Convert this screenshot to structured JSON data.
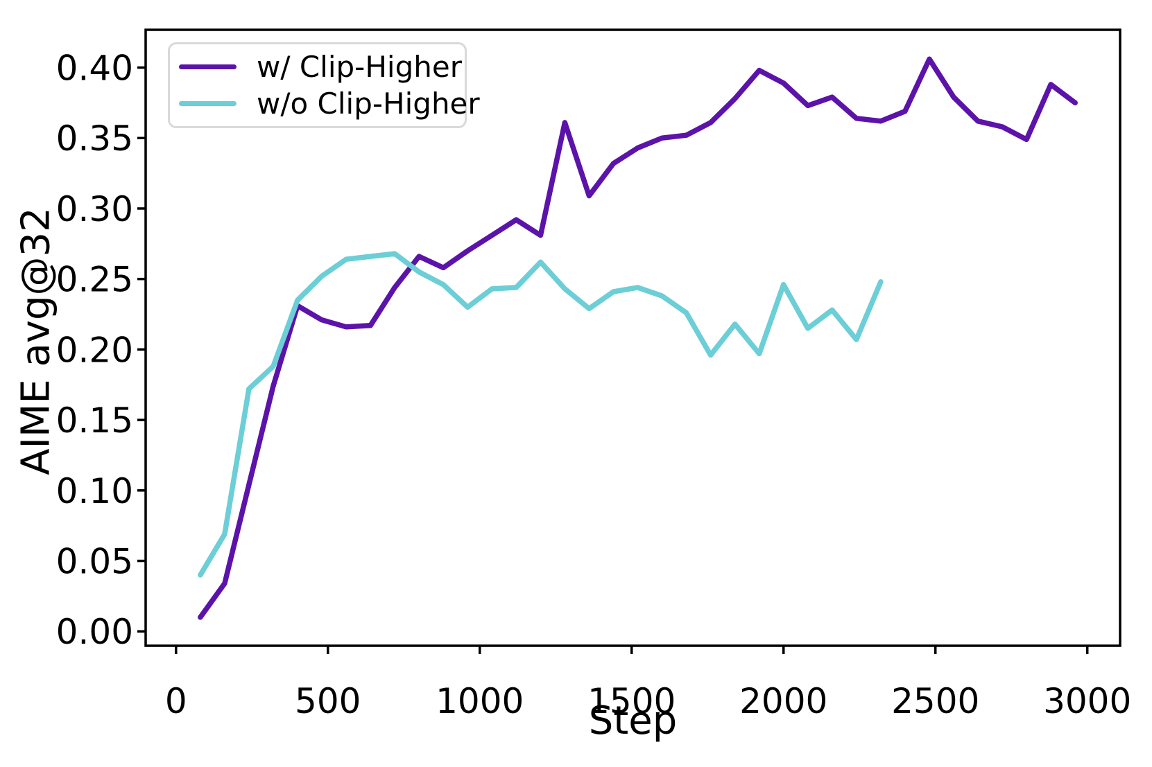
{
  "figure": {
    "background_color": "#ffffff",
    "axes_color": "#000000"
  },
  "chart_data": {
    "type": "line",
    "title": "",
    "xlabel": "Step",
    "ylabel": "AIME avg@32",
    "xlim": [
      -100,
      3108
    ],
    "ylim": [
      -0.0102,
      0.4268
    ],
    "grid": false,
    "legend_position": "upper-left",
    "x_ticks": [
      0,
      500,
      1000,
      1500,
      2000,
      2500,
      3000
    ],
    "x_tick_labels": [
      "0",
      "500",
      "1000",
      "1500",
      "2000",
      "2500",
      "3000"
    ],
    "y_ticks": [
      0.0,
      0.05,
      0.1,
      0.15,
      0.2,
      0.25,
      0.3,
      0.35,
      0.4
    ],
    "y_tick_labels": [
      "0.00",
      "0.05",
      "0.10",
      "0.15",
      "0.20",
      "0.25",
      "0.30",
      "0.35",
      "0.40"
    ],
    "series": [
      {
        "name": "w/ Clip-Higher",
        "color": "#5C13A9",
        "line_width": 7.5,
        "x": [
          80,
          160,
          240,
          320,
          400,
          480,
          560,
          640,
          720,
          800,
          880,
          960,
          1040,
          1120,
          1200,
          1280,
          1360,
          1440,
          1520,
          1600,
          1680,
          1760,
          1840,
          1920,
          2000,
          2080,
          2160,
          2240,
          2320,
          2400,
          2480,
          2560,
          2640,
          2720,
          2800,
          2880,
          2960
        ],
        "y": [
          0.01,
          0.034,
          0.104,
          0.174,
          0.231,
          0.221,
          0.216,
          0.217,
          0.244,
          0.266,
          0.258,
          0.27,
          0.281,
          0.292,
          0.281,
          0.361,
          0.309,
          0.332,
          0.343,
          0.35,
          0.352,
          0.361,
          0.378,
          0.398,
          0.389,
          0.373,
          0.379,
          0.364,
          0.362,
          0.369,
          0.406,
          0.379,
          0.362,
          0.358,
          0.349,
          0.388,
          0.375
        ]
      },
      {
        "name": "w/o Clip-Higher",
        "color": "#6CCED6",
        "line_width": 7.5,
        "x": [
          80,
          160,
          240,
          320,
          400,
          480,
          560,
          640,
          720,
          800,
          880,
          960,
          1040,
          1120,
          1200,
          1280,
          1360,
          1440,
          1520,
          1600,
          1680,
          1760,
          1840,
          1920,
          2000,
          2080,
          2160,
          2240,
          2320
        ],
        "y": [
          0.04,
          0.069,
          0.172,
          0.188,
          0.235,
          0.252,
          0.264,
          0.266,
          0.268,
          0.255,
          0.246,
          0.23,
          0.243,
          0.244,
          0.262,
          0.243,
          0.229,
          0.241,
          0.244,
          0.238,
          0.226,
          0.196,
          0.218,
          0.197,
          0.246,
          0.215,
          0.228,
          0.207,
          0.248
        ]
      }
    ]
  }
}
